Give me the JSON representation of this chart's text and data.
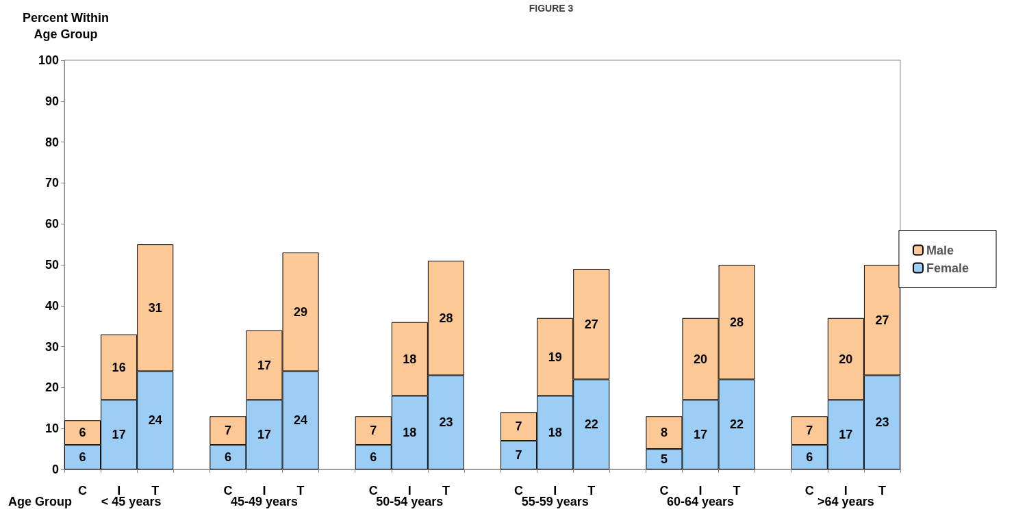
{
  "chart_data": {
    "type": "bar",
    "stacked": true,
    "title": "FIGURE 3",
    "ylabel": "Percent Within\nAge Group",
    "xlabel": "Age Group",
    "categories": [
      "C",
      "I",
      "T",
      null,
      "C",
      "I",
      "T",
      null,
      "C",
      "I",
      "T",
      null,
      "C",
      "I",
      "T",
      null,
      "C",
      "I",
      "T",
      null,
      "C",
      "I",
      "T"
    ],
    "series": [
      {
        "name": "Female",
        "color": "#9ccdf5",
        "values": [
          6,
          17,
          24,
          null,
          6,
          17,
          24,
          null,
          6,
          18,
          23,
          null,
          7,
          18,
          22,
          null,
          5,
          17,
          22,
          null,
          6,
          17,
          23
        ]
      },
      {
        "name": "Male",
        "color": "#fcc896",
        "values": [
          6,
          16,
          31,
          null,
          7,
          17,
          29,
          null,
          7,
          18,
          28,
          null,
          7,
          19,
          27,
          null,
          8,
          20,
          28,
          null,
          7,
          20,
          27
        ]
      }
    ],
    "annotations": [
      "< 45 years",
      "45-49 years",
      "50-54 years",
      "55-59 years",
      "60-64 years",
      ">64 years"
    ],
    "ylim": [
      0,
      100
    ],
    "yticks": [
      0,
      10,
      20,
      30,
      40,
      50,
      60,
      70,
      80,
      90,
      100
    ],
    "grid": false,
    "legend": "right",
    "data_labels": true
  }
}
